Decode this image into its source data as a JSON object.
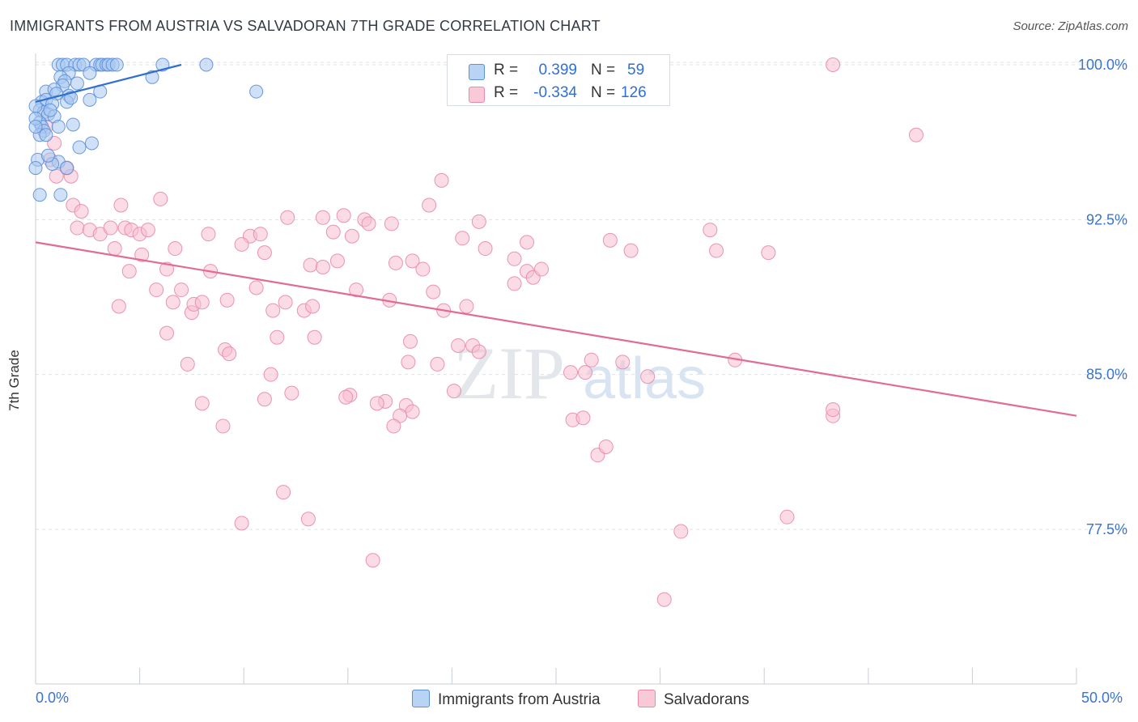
{
  "title": "IMMIGRANTS FROM AUSTRIA VS SALVADORAN 7TH GRADE CORRELATION CHART",
  "source": "Source: ZipAtlas.com",
  "watermark": {
    "zip": "ZIP",
    "atlas": "atlas"
  },
  "legend": {
    "r_label": "R =",
    "n_label": "N =",
    "austria": {
      "r": "0.399",
      "n": "59"
    },
    "salvadoran": {
      "r": "-0.334",
      "n": "126"
    }
  },
  "bottom_legend": {
    "austria": "Immigrants from Austria",
    "salvadoran": "Salvadorans"
  },
  "colors": {
    "austria_fill": "#a9c8f0",
    "austria_stroke": "#5b8fd8",
    "austria_line": "#2f6fcf",
    "salvadoran_fill": "#f7bdd0",
    "salvadoran_stroke": "#e88aaa",
    "salvadoran_line": "#e06b96",
    "tick_label": "#3a73d0",
    "grid": "#dde1e6"
  },
  "chart_data": {
    "type": "scatter",
    "title": "IMMIGRANTS FROM AUSTRIA VS SALVADORAN 7TH GRADE CORRELATION CHART",
    "xlabel": "",
    "ylabel": "7th Grade",
    "xlim": [
      0,
      50
    ],
    "ylim": [
      70,
      101
    ],
    "x_tick_labels": [
      "0.0%",
      "50.0%"
    ],
    "y_ticks": [
      77.5,
      85.0,
      92.5,
      100.0
    ],
    "y_tick_labels": [
      "77.5%",
      "85.0%",
      "92.5%",
      "100.0%"
    ],
    "grid": true,
    "legend_position": "top-center",
    "series": [
      {
        "name": "Immigrants from Austria",
        "trend": {
          "x": [
            0.0,
            7.0
          ],
          "y": [
            98.2,
            100.0
          ]
        },
        "points": [
          [
            1.1,
            100
          ],
          [
            1.3,
            100
          ],
          [
            1.5,
            100
          ],
          [
            1.9,
            100
          ],
          [
            2.1,
            100
          ],
          [
            2.3,
            100
          ],
          [
            2.9,
            100
          ],
          [
            3.1,
            100
          ],
          [
            3.2,
            100
          ],
          [
            3.4,
            100
          ],
          [
            3.5,
            100
          ],
          [
            3.7,
            100
          ],
          [
            3.9,
            100
          ],
          [
            6.1,
            100
          ],
          [
            8.2,
            100
          ],
          [
            2.6,
            99.6
          ],
          [
            1.6,
            99.6
          ],
          [
            1.2,
            99.4
          ],
          [
            1.4,
            99.2
          ],
          [
            2.0,
            99.1
          ],
          [
            1.3,
            99.0
          ],
          [
            5.6,
            99.4
          ],
          [
            0.5,
            98.7
          ],
          [
            0.9,
            98.8
          ],
          [
            1.0,
            98.6
          ],
          [
            1.6,
            98.5
          ],
          [
            3.1,
            98.7
          ],
          [
            10.6,
            98.7
          ],
          [
            0.3,
            98.2
          ],
          [
            0.5,
            98.3
          ],
          [
            0.8,
            98.1
          ],
          [
            1.5,
            98.2
          ],
          [
            1.7,
            98.4
          ],
          [
            2.6,
            98.3
          ],
          [
            0.2,
            97.8
          ],
          [
            0.4,
            97.7
          ],
          [
            0.6,
            97.6
          ],
          [
            0.9,
            97.5
          ],
          [
            0.7,
            97.8
          ],
          [
            0.2,
            97.2
          ],
          [
            1.1,
            97.0
          ],
          [
            1.8,
            97.1
          ],
          [
            0.3,
            97.0
          ],
          [
            0.4,
            96.8
          ],
          [
            0.2,
            96.6
          ],
          [
            0.5,
            96.6
          ],
          [
            2.1,
            96.0
          ],
          [
            2.7,
            96.2
          ],
          [
            1.1,
            95.3
          ],
          [
            1.5,
            95.0
          ],
          [
            0.8,
            95.2
          ],
          [
            0.1,
            95.4
          ],
          [
            0.6,
            95.6
          ],
          [
            0.2,
            93.7
          ],
          [
            1.2,
            93.7
          ],
          [
            0.0,
            97.4
          ],
          [
            0.0,
            98.0
          ],
          [
            0.0,
            97.0
          ],
          [
            0.0,
            95.0
          ]
        ]
      },
      {
        "name": "Salvadorans",
        "trend": {
          "x": [
            0.0,
            50.0
          ],
          "y": [
            91.4,
            83.0
          ]
        },
        "points": [
          [
            38.3,
            100.0
          ],
          [
            42.3,
            96.6
          ],
          [
            0.5,
            97.0
          ],
          [
            0.9,
            96.2
          ],
          [
            0.7,
            95.4
          ],
          [
            1.5,
            95.0
          ],
          [
            1.7,
            94.6
          ],
          [
            1.0,
            94.6
          ],
          [
            19.5,
            94.4
          ],
          [
            18.9,
            93.2
          ],
          [
            6.0,
            93.5
          ],
          [
            4.1,
            93.2
          ],
          [
            1.8,
            93.2
          ],
          [
            2.2,
            92.9
          ],
          [
            12.1,
            92.6
          ],
          [
            13.8,
            92.6
          ],
          [
            14.8,
            92.7
          ],
          [
            15.8,
            92.5
          ],
          [
            16.0,
            92.3
          ],
          [
            17.1,
            92.3
          ],
          [
            21.3,
            92.4
          ],
          [
            2.0,
            92.1
          ],
          [
            2.6,
            92.0
          ],
          [
            3.1,
            91.8
          ],
          [
            3.6,
            92.1
          ],
          [
            4.3,
            92.1
          ],
          [
            4.6,
            92.0
          ],
          [
            5.0,
            91.8
          ],
          [
            5.4,
            92.0
          ],
          [
            8.3,
            91.8
          ],
          [
            10.3,
            91.7
          ],
          [
            10.8,
            91.8
          ],
          [
            14.3,
            91.9
          ],
          [
            15.2,
            91.7
          ],
          [
            3.8,
            91.1
          ],
          [
            5.1,
            90.8
          ],
          [
            6.7,
            91.1
          ],
          [
            9.9,
            91.3
          ],
          [
            11.0,
            90.9
          ],
          [
            20.5,
            91.6
          ],
          [
            21.6,
            91.1
          ],
          [
            23.6,
            91.4
          ],
          [
            27.6,
            91.5
          ],
          [
            28.6,
            91.0
          ],
          [
            32.4,
            92.0
          ],
          [
            35.2,
            90.9
          ],
          [
            32.7,
            91.0
          ],
          [
            4.5,
            90.0
          ],
          [
            6.3,
            90.1
          ],
          [
            8.4,
            90.0
          ],
          [
            13.2,
            90.3
          ],
          [
            13.8,
            90.2
          ],
          [
            14.5,
            90.5
          ],
          [
            17.3,
            90.4
          ],
          [
            18.1,
            90.5
          ],
          [
            18.6,
            90.1
          ],
          [
            23.0,
            90.6
          ],
          [
            23.6,
            90.0
          ],
          [
            23.9,
            89.7
          ],
          [
            24.3,
            90.1
          ],
          [
            5.8,
            89.1
          ],
          [
            7.0,
            89.1
          ],
          [
            10.6,
            89.2
          ],
          [
            12.0,
            88.5
          ],
          [
            15.4,
            89.1
          ],
          [
            17.0,
            88.6
          ],
          [
            19.1,
            89.0
          ],
          [
            23.0,
            89.4
          ],
          [
            4.0,
            88.3
          ],
          [
            6.6,
            88.5
          ],
          [
            7.5,
            88.0
          ],
          [
            7.6,
            88.4
          ],
          [
            8.0,
            88.5
          ],
          [
            9.2,
            88.6
          ],
          [
            11.4,
            88.1
          ],
          [
            12.9,
            88.1
          ],
          [
            13.3,
            88.3
          ],
          [
            19.6,
            88.1
          ],
          [
            20.7,
            88.3
          ],
          [
            6.3,
            87.0
          ],
          [
            11.6,
            86.8
          ],
          [
            13.4,
            86.8
          ],
          [
            18.0,
            86.6
          ],
          [
            20.3,
            86.4
          ],
          [
            21.0,
            86.4
          ],
          [
            21.3,
            86.1
          ],
          [
            7.3,
            85.5
          ],
          [
            9.1,
            86.2
          ],
          [
            9.3,
            86.0
          ],
          [
            17.9,
            85.6
          ],
          [
            19.3,
            85.5
          ],
          [
            25.7,
            85.1
          ],
          [
            26.4,
            85.1
          ],
          [
            26.7,
            85.7
          ],
          [
            28.2,
            85.6
          ],
          [
            29.4,
            84.9
          ],
          [
            33.6,
            85.7
          ],
          [
            11.3,
            85.0
          ],
          [
            12.3,
            84.1
          ],
          [
            15.1,
            84.0
          ],
          [
            16.8,
            83.7
          ],
          [
            17.8,
            83.5
          ],
          [
            18.1,
            83.2
          ],
          [
            20.1,
            84.2
          ],
          [
            8.0,
            83.6
          ],
          [
            11.0,
            83.8
          ],
          [
            14.9,
            83.9
          ],
          [
            16.4,
            83.6
          ],
          [
            17.5,
            83.0
          ],
          [
            25.8,
            82.8
          ],
          [
            26.3,
            82.9
          ],
          [
            38.3,
            83.0
          ],
          [
            38.3,
            83.3
          ],
          [
            9.0,
            82.5
          ],
          [
            17.2,
            82.5
          ],
          [
            27.0,
            81.1
          ],
          [
            27.4,
            81.5
          ],
          [
            11.9,
            79.3
          ],
          [
            13.1,
            78.0
          ],
          [
            9.9,
            77.8
          ],
          [
            36.1,
            78.1
          ],
          [
            31.0,
            77.4
          ],
          [
            16.2,
            76.0
          ],
          [
            30.2,
            74.1
          ]
        ]
      }
    ]
  }
}
